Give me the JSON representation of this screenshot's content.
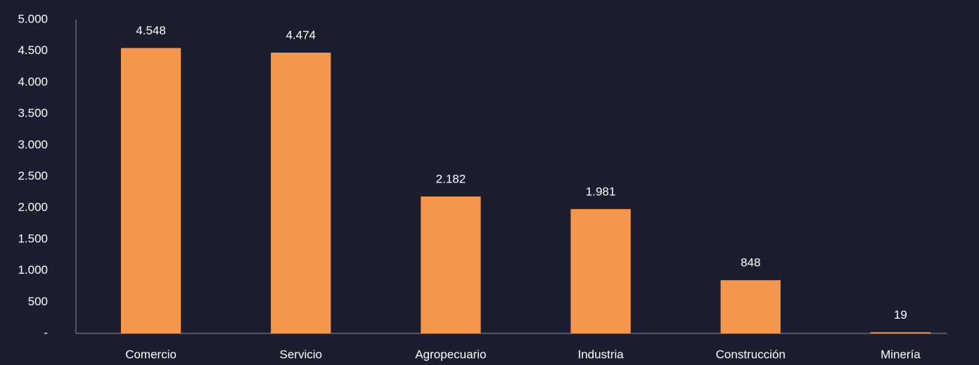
{
  "chart_data": {
    "type": "bar",
    "categories": [
      "Comercio",
      "Servicio",
      "Agropecuario",
      "Industria",
      "Construcción",
      "Minería"
    ],
    "values": [
      4548,
      4474,
      2182,
      1981,
      848,
      19
    ],
    "value_labels": [
      "4.548",
      "4.474",
      "2.182",
      "1.981",
      "848",
      "19"
    ],
    "color": "#f5964b",
    "ylim": [
      0,
      5000
    ],
    "yticks": [
      {
        "value": 0,
        "label": "-"
      },
      500,
      {
        "value": 1000,
        "label": "1.000"
      },
      {
        "value": 1500,
        "label": "1.500"
      },
      {
        "value": 2000,
        "label": "2.000"
      },
      {
        "value": 2500,
        "label": "2.500"
      },
      {
        "value": 3000,
        "label": "3.000"
      },
      {
        "value": 3500,
        "label": "3.500"
      },
      {
        "value": 4000,
        "label": "4.000"
      },
      {
        "value": 4500,
        "label": "4.500"
      },
      {
        "value": 5000,
        "label": "5.000"
      }
    ],
    "grid": false
  }
}
